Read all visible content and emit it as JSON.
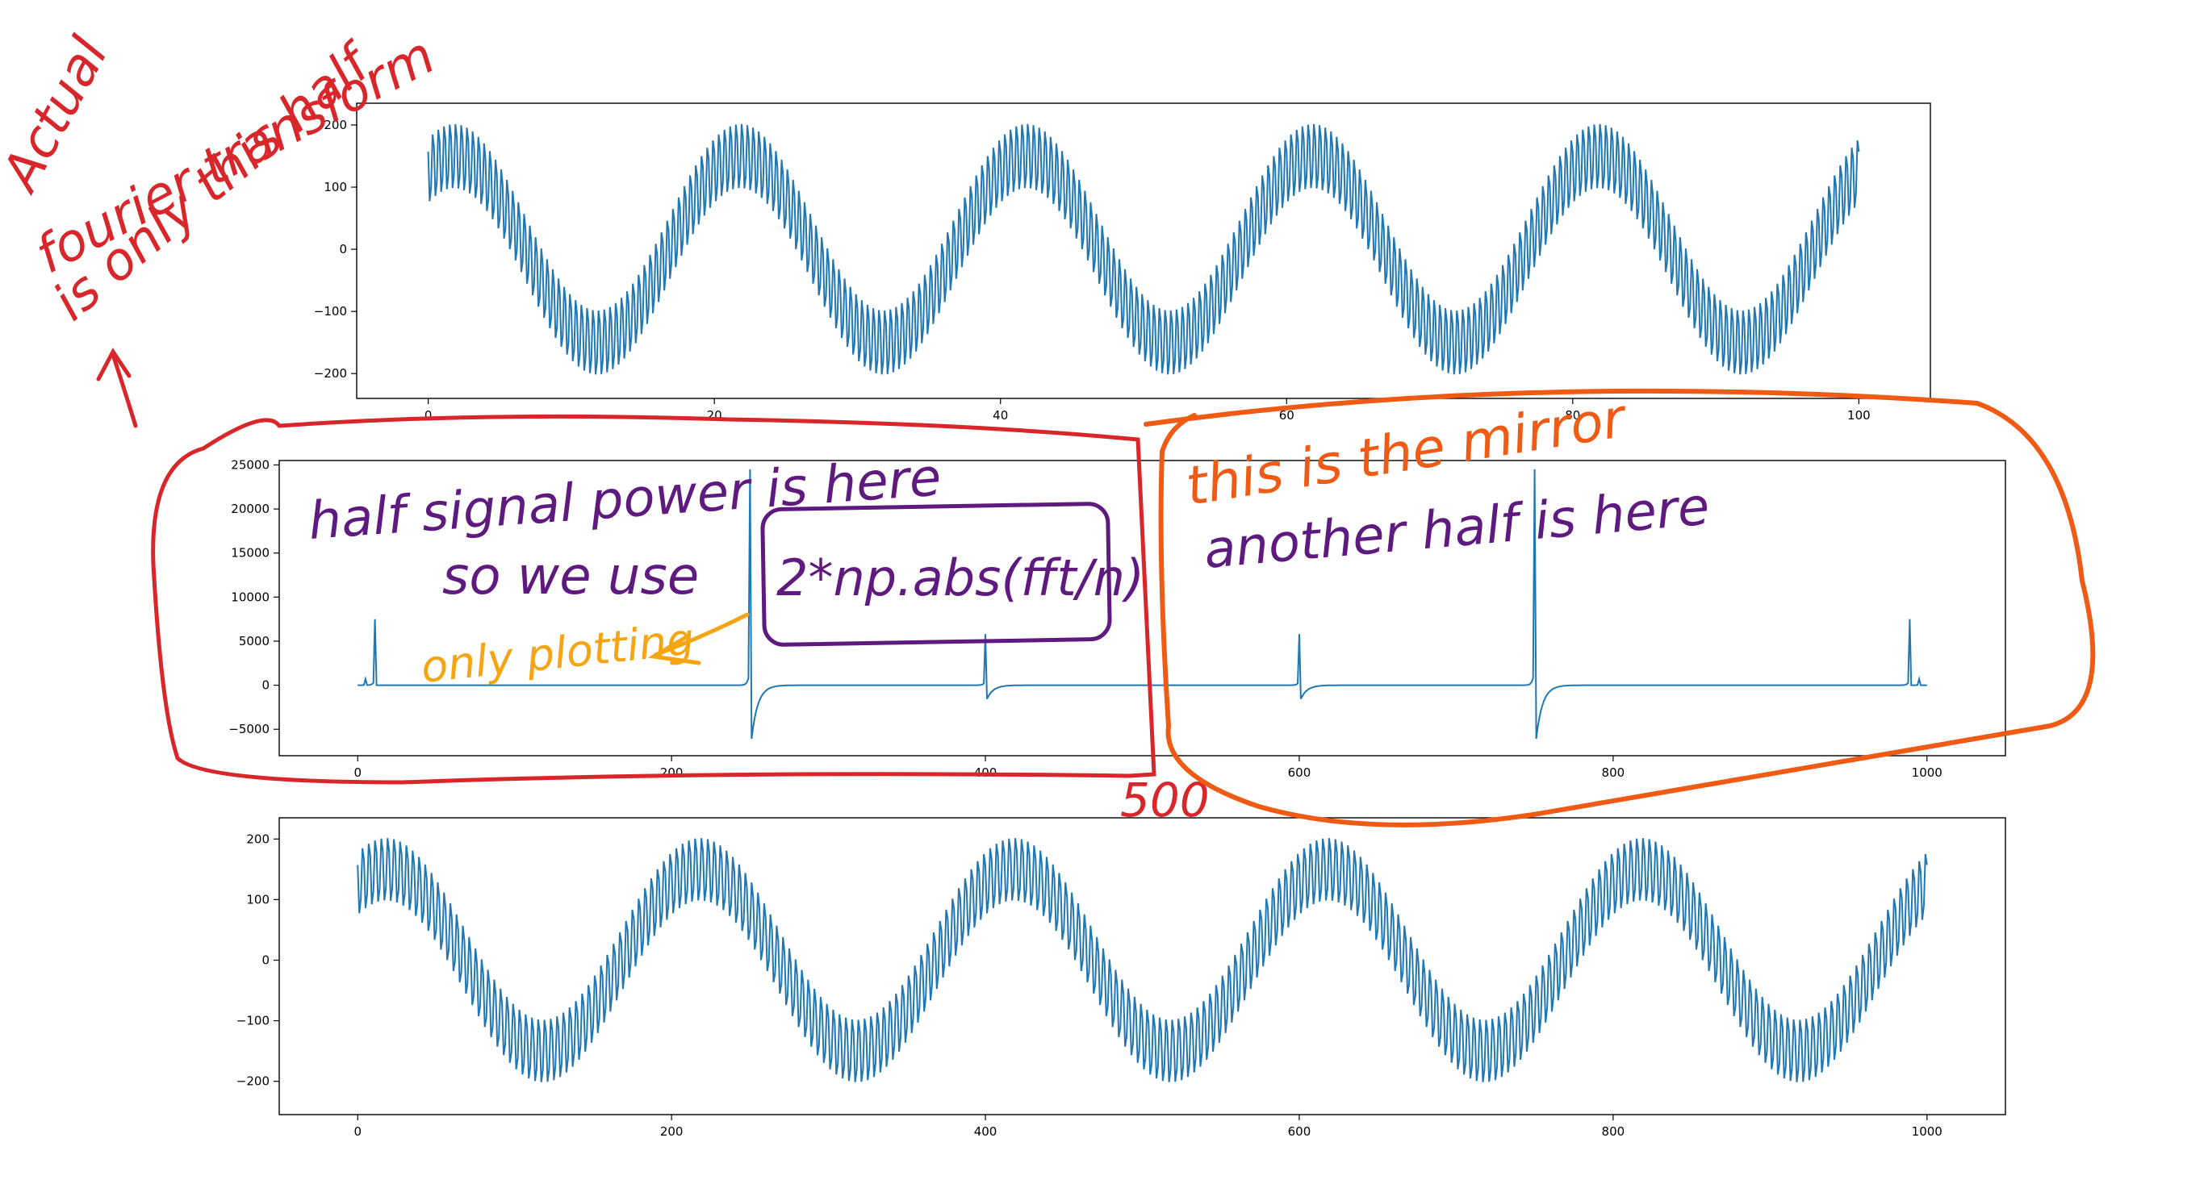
{
  "colors": {
    "line": "#1f77b4",
    "red_ink": "#d8262a",
    "purple_ink": "#5e1a7e",
    "orange_ink": "#ef5a14",
    "yellow_ink": "#f5a512"
  },
  "chart_data": [
    {
      "type": "line",
      "title": "",
      "xlabel": "",
      "ylabel": "",
      "xlim": [
        -5,
        105
      ],
      "ylim": [
        -240,
        235
      ],
      "xticks": [
        0,
        20,
        40,
        60,
        80,
        100
      ],
      "yticks": [
        -200,
        -100,
        0,
        100,
        200
      ],
      "xtick_labels": [
        "0",
        "20",
        "40",
        "60",
        "80",
        "100"
      ],
      "ytick_labels": [
        "−200",
        "−100",
        "0",
        "100",
        "200"
      ],
      "grid": false,
      "series": [
        {
          "description_kind": "signal",
          "x_range": [
            0,
            100
          ],
          "n_points": 1000,
          "components": [
            {
              "amplitude": 150,
              "frequency_hz": 0.05,
              "phase": 1.0
            },
            {
              "amplitude": 60,
              "frequency_hz": 2.5,
              "phase": 2.6
            }
          ]
        }
      ]
    },
    {
      "type": "line",
      "title": "",
      "xlabel": "",
      "ylabel": "",
      "xlim": [
        -50,
        1050
      ],
      "ylim": [
        -8000,
        25500
      ],
      "xticks": [
        0,
        200,
        400,
        600,
        800,
        1000
      ],
      "yticks": [
        -5000,
        0,
        5000,
        10000,
        15000,
        20000,
        25000
      ],
      "xtick_labels": [
        "0",
        "200",
        "400",
        "600",
        "800",
        "1000"
      ],
      "ytick_labels": [
        "−5000",
        "0",
        "5000",
        "10000",
        "15000",
        "20000",
        "25000"
      ],
      "grid": false,
      "series": [
        {
          "description_kind": "fft",
          "x_range": [
            0,
            1000
          ],
          "peaks": [
            {
              "x": 5,
              "up": 700,
              "down": 0
            },
            {
              "x": 11,
              "up": 7500,
              "down": 0
            },
            {
              "x": 250,
              "up": 24500,
              "down": -7800
            },
            {
              "x": 400,
              "up": 5800,
              "down": -2000
            },
            {
              "x": 600,
              "up": 5800,
              "down": -2000
            },
            {
              "x": 750,
              "up": 24500,
              "down": -7800
            },
            {
              "x": 989,
              "up": 7500,
              "down": 0
            },
            {
              "x": 995,
              "up": 700,
              "down": 0
            }
          ]
        }
      ]
    },
    {
      "type": "line",
      "title": "",
      "xlabel": "",
      "ylabel": "",
      "xlim": [
        -50,
        1050
      ],
      "ylim": [
        -255,
        235
      ],
      "xticks": [
        0,
        200,
        400,
        600,
        800,
        1000
      ],
      "yticks": [
        -200,
        -100,
        0,
        100,
        200
      ],
      "xtick_labels": [
        "0",
        "200",
        "400",
        "600",
        "800",
        "1000"
      ],
      "ytick_labels": [
        "−200",
        "−100",
        "0",
        "100",
        "200"
      ],
      "grid": false,
      "series": [
        {
          "description_kind": "signal",
          "x_range": [
            0,
            1000
          ],
          "n_points": 1000,
          "components": [
            {
              "amplitude": 150,
              "frequency_hz": 0.005,
              "phase": 1.0
            },
            {
              "amplitude": 60,
              "frequency_hz": 0.25,
              "phase": 2.6
            }
          ]
        }
      ]
    }
  ],
  "annotations": {
    "left_note": [
      "Actual",
      "fourier transform",
      "is only this half"
    ],
    "half_power": "half signal power is here",
    "so_we_use": "so we use",
    "formula": "2*np.abs(fft/n)",
    "only_plotting": "only plotting",
    "mirror": "this is the mirror",
    "another_half": "another half is here",
    "midpoint": "500"
  }
}
